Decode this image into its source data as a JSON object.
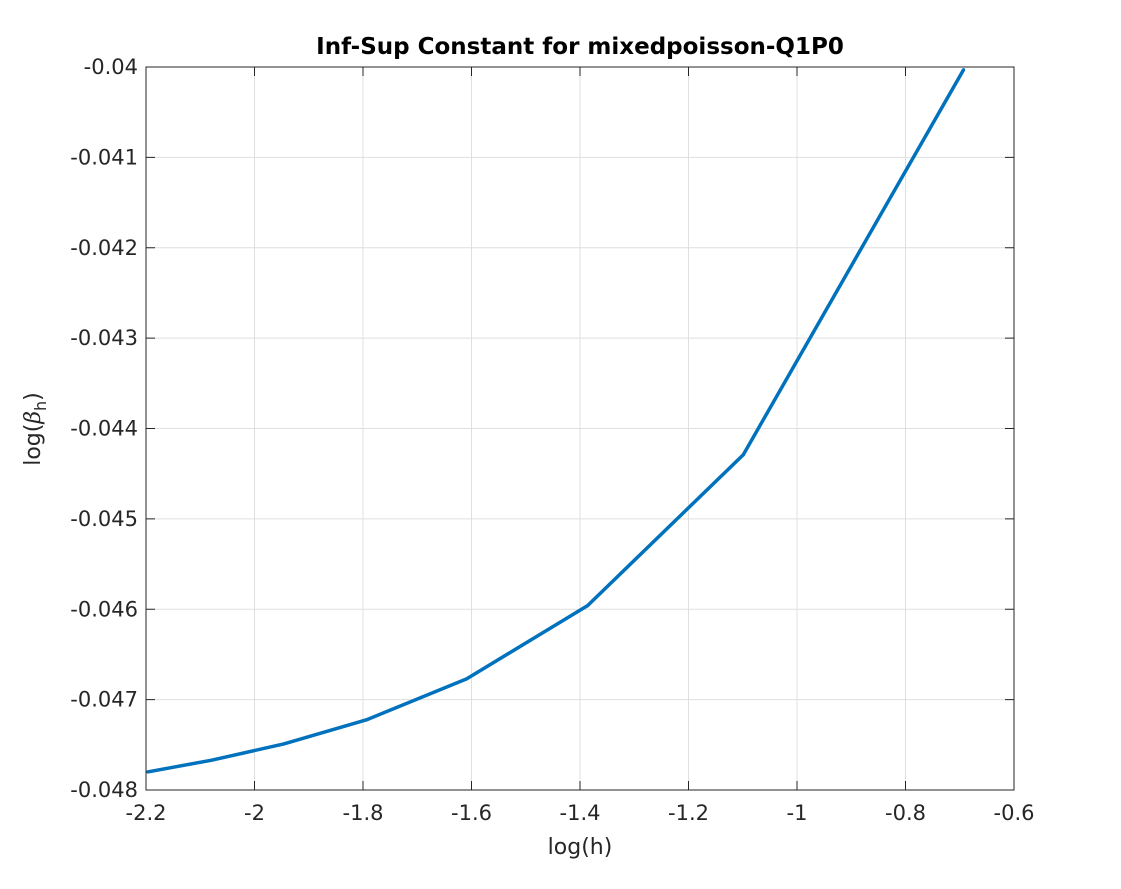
{
  "chart_data": {
    "type": "line",
    "title": "Inf-Sup Constant for mixedpoisson-Q1P0",
    "xlabel": "log(h)",
    "ylabel": {
      "prefix": "log(",
      "symbol": "β",
      "subscript": "h",
      "suffix": ")"
    },
    "xlim": [
      -2.2,
      -0.6
    ],
    "ylim": [
      -0.048,
      -0.04
    ],
    "xticks": [
      -2.2,
      -2,
      -1.8,
      -1.6,
      -1.4,
      -1.2,
      -1,
      -0.8,
      -0.6
    ],
    "xtick_labels": [
      "-2.2",
      "-2",
      "-1.8",
      "-1.6",
      "-1.4",
      "-1.2",
      "-1",
      "-0.8",
      "-0.6"
    ],
    "yticks": [
      -0.048,
      -0.047,
      -0.046,
      -0.045,
      -0.044,
      -0.043,
      -0.042,
      -0.041,
      -0.04
    ],
    "ytick_labels": [
      "-0.048",
      "-0.047",
      "-0.046",
      "-0.045",
      "-0.044",
      "-0.043",
      "-0.042",
      "-0.041",
      "-0.04"
    ],
    "grid": true,
    "series": [
      {
        "color": "#0072BD",
        "x": [
          -2.197,
          -2.079,
          -1.946,
          -1.792,
          -1.609,
          -1.386,
          -1.099,
          -0.693
        ],
        "y": [
          -0.0478,
          -0.04767,
          -0.04749,
          -0.04722,
          -0.04677,
          -0.04596,
          -0.04429,
          -0.04003
        ]
      }
    ]
  }
}
